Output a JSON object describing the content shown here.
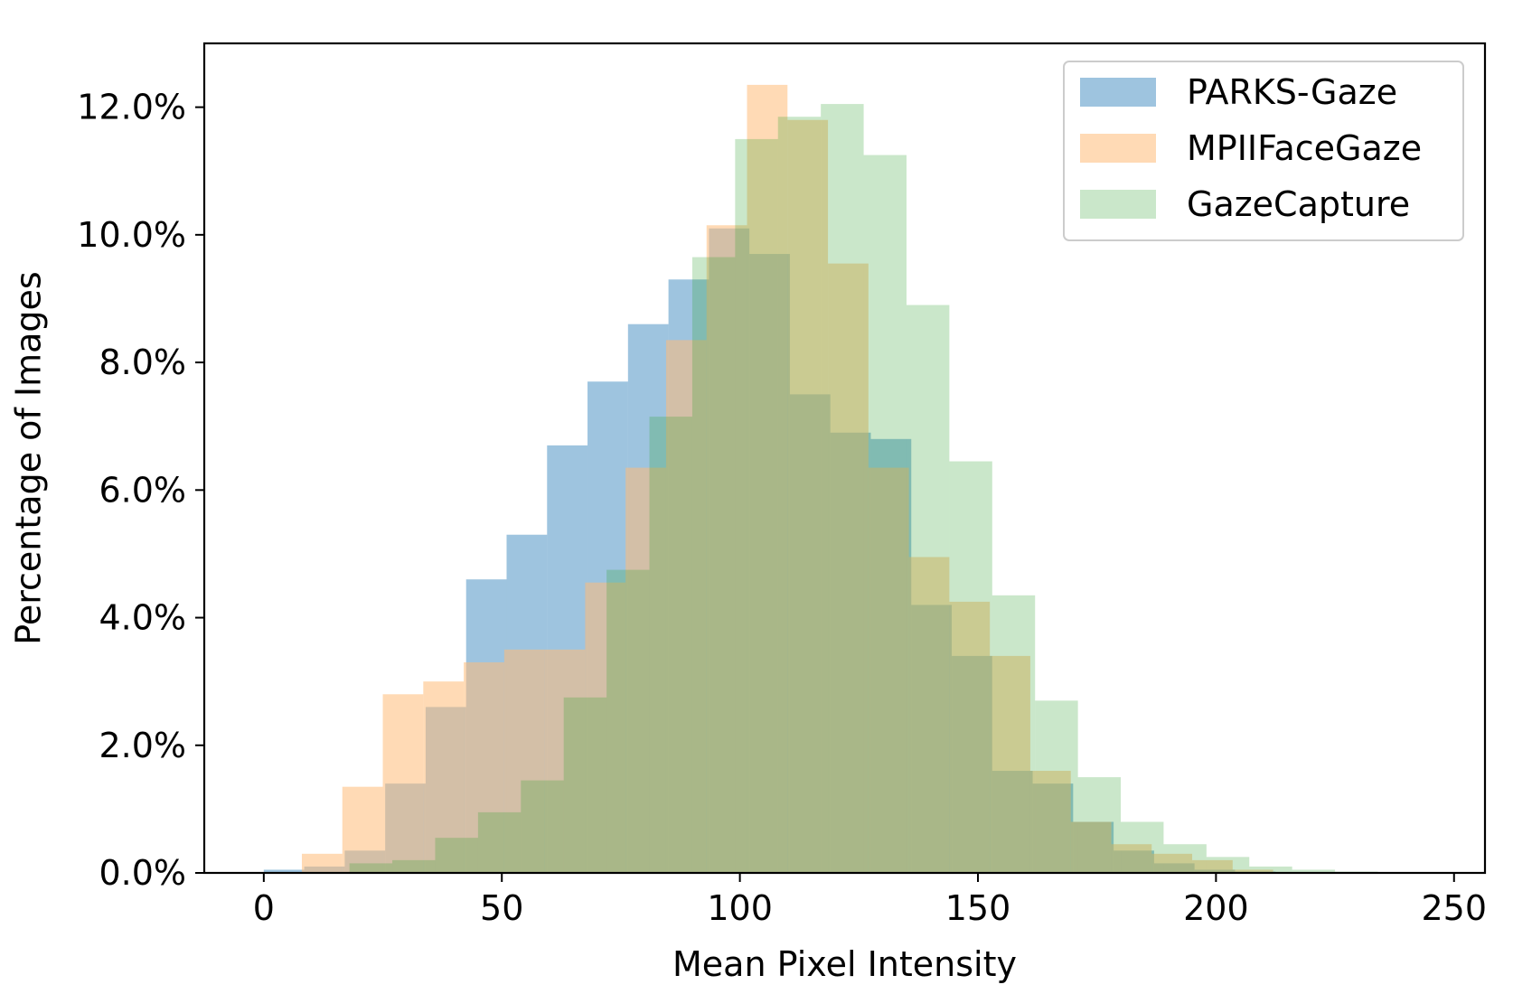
{
  "chart_data": {
    "type": "histogram",
    "xlabel": "Mean Pixel Intensity",
    "ylabel": "Percentage of Images",
    "xlim": [
      -12.5,
      256.5
    ],
    "ylim": [
      0,
      13.0
    ],
    "xticks": [
      0,
      50,
      100,
      150,
      200,
      250
    ],
    "yticks": [
      0,
      2,
      4,
      6,
      8,
      10,
      12
    ],
    "ytick_format": "percent_1dp",
    "legend_position": "upper right",
    "grid": false,
    "series": [
      {
        "name": "PARKS-Gaze",
        "color": "#1f77b4",
        "opacity": 0.43,
        "bin_edges": [
          0.0,
          8.5,
          17.0,
          25.5,
          34.0,
          42.5,
          51.0,
          59.5,
          68.0,
          76.5,
          85.0,
          93.5,
          102.0,
          110.5,
          119.0,
          127.5,
          136.0,
          144.5,
          153.0,
          161.5,
          170.0,
          178.5,
          187.0,
          195.5,
          204.0,
          212.5,
          221.0,
          229.5,
          238.0
        ],
        "values": [
          0.05,
          0.1,
          0.35,
          1.4,
          2.6,
          4.6,
          5.3,
          6.7,
          7.7,
          8.6,
          9.3,
          10.1,
          9.7,
          7.5,
          6.9,
          6.8,
          4.2,
          3.4,
          1.6,
          1.4,
          0.8,
          0.35,
          0.15,
          0.05,
          0.02,
          0.01,
          0.0,
          0.0
        ]
      },
      {
        "name": "MPIIFaceGaze",
        "color": "#ffbb78",
        "opacity": 0.55,
        "bin_edges": [
          8.0,
          16.5,
          25.0,
          33.5,
          42.0,
          50.5,
          59.0,
          67.5,
          76.0,
          84.5,
          93.0,
          101.5,
          110.0,
          118.5,
          127.0,
          135.5,
          144.0,
          152.5,
          161.0,
          169.5,
          178.0,
          186.5,
          195.0,
          203.5,
          212.0
        ],
        "values": [
          0.3,
          1.35,
          2.8,
          3.0,
          3.3,
          3.5,
          3.5,
          4.55,
          6.35,
          8.35,
          10.15,
          12.35,
          11.8,
          9.55,
          6.35,
          4.95,
          4.25,
          3.4,
          1.6,
          0.8,
          0.45,
          0.3,
          0.2,
          0.05
        ]
      },
      {
        "name": "GazeCapture",
        "color": "#2ca02c",
        "opacity": 0.25,
        "bin_edges": [
          18.0,
          27.0,
          36.0,
          45.0,
          54.0,
          63.0,
          72.0,
          81.0,
          90.0,
          99.0,
          108.0,
          117.0,
          126.0,
          135.0,
          144.0,
          153.0,
          162.0,
          171.0,
          180.0,
          189.0,
          198.0,
          207.0,
          216.0,
          225.0,
          234.0
        ],
        "values": [
          0.15,
          0.2,
          0.55,
          0.95,
          1.45,
          2.75,
          4.75,
          7.15,
          9.65,
          11.5,
          11.85,
          12.05,
          11.25,
          8.9,
          6.45,
          4.35,
          2.7,
          1.5,
          0.8,
          0.45,
          0.25,
          0.1,
          0.05,
          0.02
        ]
      }
    ]
  }
}
